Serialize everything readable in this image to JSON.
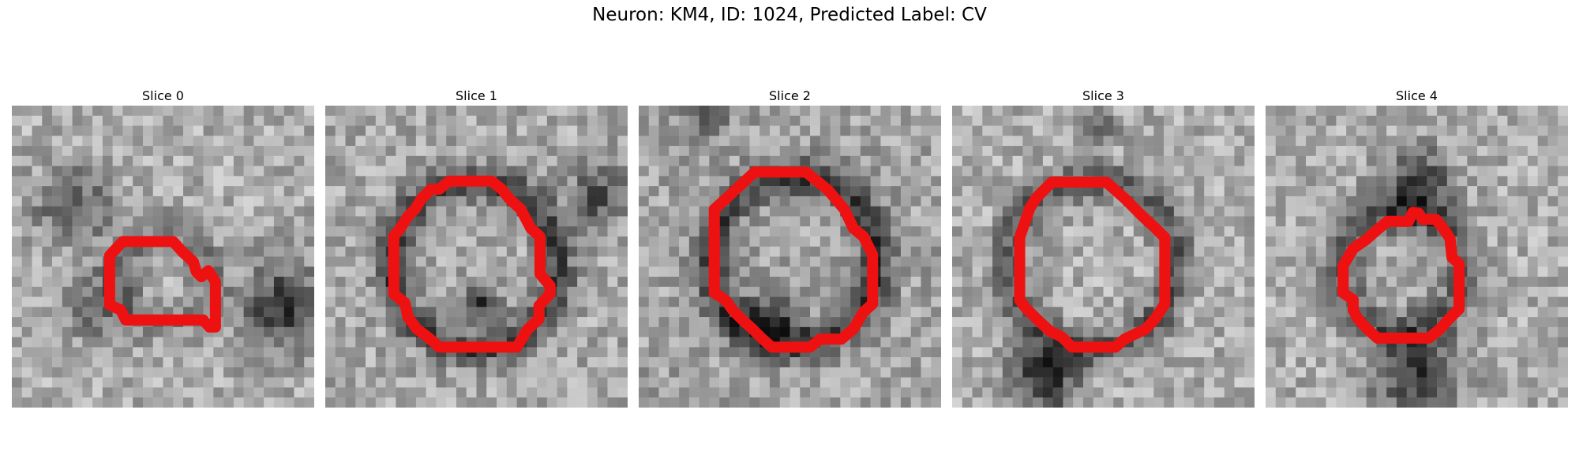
{
  "title": "Neuron: KM4, ID: 1024, Predicted Label: CV",
  "panels": [
    {
      "title": "Slice 0",
      "contour_color": "#ee1111"
    },
    {
      "title": "Slice 1",
      "contour_color": "#ee1111"
    },
    {
      "title": "Slice 2",
      "contour_color": "#ee1111"
    },
    {
      "title": "Slice 3",
      "contour_color": "#ee1111"
    },
    {
      "title": "Slice 4",
      "contour_color": "#ee1111"
    }
  ]
}
